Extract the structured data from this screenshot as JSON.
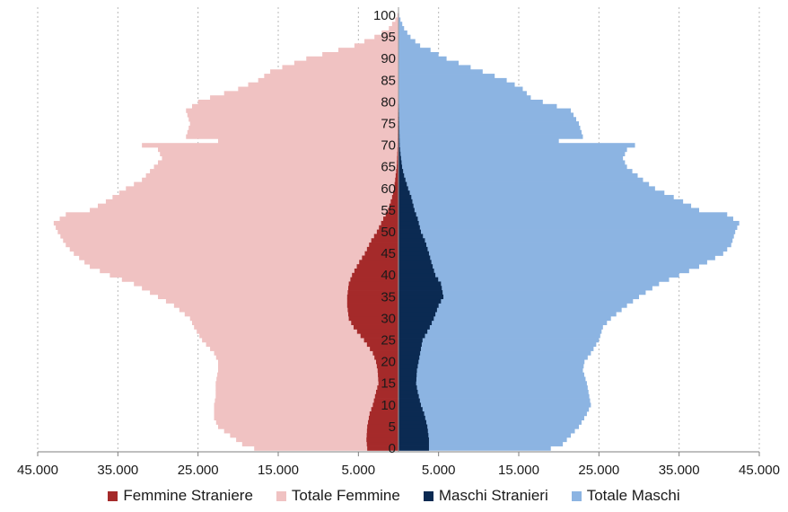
{
  "chart_data": {
    "type": "bar",
    "orientation": "horizontal-pyramid",
    "x_ticks": [
      "45.000",
      "35.000",
      "25.000",
      "15.000",
      "5.000",
      "5.000",
      "15.000",
      "25.000",
      "35.000",
      "45.000"
    ],
    "x_tick_values": [
      -45000,
      -35000,
      -25000,
      -15000,
      -5000,
      5000,
      15000,
      25000,
      35000,
      45000
    ],
    "xlim": [
      -45000,
      45000
    ],
    "age_ticks": [
      "0",
      "5",
      "10",
      "15",
      "20",
      "25",
      "30",
      "35",
      "40",
      "45",
      "50",
      "55",
      "60",
      "65",
      "70",
      "75",
      "80",
      "85",
      "90",
      "95",
      "100"
    ],
    "age_range": [
      0,
      100
    ],
    "grid": "vertical-dashed",
    "legend_position": "bottom",
    "series": [
      {
        "name": "Femmine Straniere",
        "color": "#a52a2a",
        "side": "left",
        "points": [
          [
            0,
            3900
          ],
          [
            2,
            4000
          ],
          [
            5,
            3900
          ],
          [
            8,
            3600
          ],
          [
            10,
            3200
          ],
          [
            13,
            2800
          ],
          [
            15,
            2500
          ],
          [
            18,
            2600
          ],
          [
            20,
            2800
          ],
          [
            22,
            3200
          ],
          [
            25,
            4300
          ],
          [
            28,
            5600
          ],
          [
            30,
            6200
          ],
          [
            33,
            6400
          ],
          [
            35,
            6400
          ],
          [
            38,
            6200
          ],
          [
            40,
            5800
          ],
          [
            43,
            4900
          ],
          [
            45,
            4200
          ],
          [
            48,
            3400
          ],
          [
            50,
            2700
          ],
          [
            53,
            1900
          ],
          [
            55,
            1300
          ],
          [
            58,
            800
          ],
          [
            60,
            550
          ],
          [
            63,
            350
          ],
          [
            65,
            220
          ],
          [
            68,
            150
          ],
          [
            70,
            100
          ],
          [
            75,
            80
          ],
          [
            80,
            60
          ],
          [
            85,
            40
          ],
          [
            90,
            20
          ],
          [
            95,
            10
          ],
          [
            100,
            0
          ]
        ]
      },
      {
        "name": "Totale Femmine",
        "color": "#f0c2c2",
        "side": "left",
        "points": [
          [
            0,
            18000
          ],
          [
            1,
            19500
          ],
          [
            3,
            21000
          ],
          [
            5,
            22500
          ],
          [
            7,
            23000
          ],
          [
            10,
            23000
          ],
          [
            12,
            22800
          ],
          [
            15,
            22800
          ],
          [
            18,
            22500
          ],
          [
            20,
            22500
          ],
          [
            22,
            23000
          ],
          [
            25,
            24500
          ],
          [
            28,
            25500
          ],
          [
            30,
            26000
          ],
          [
            33,
            28000
          ],
          [
            35,
            30000
          ],
          [
            38,
            33000
          ],
          [
            40,
            36000
          ],
          [
            42,
            38500
          ],
          [
            45,
            40500
          ],
          [
            47,
            41500
          ],
          [
            50,
            42500
          ],
          [
            52,
            43000
          ],
          [
            54,
            41500
          ],
          [
            55,
            38500
          ],
          [
            57,
            36500
          ],
          [
            60,
            34000
          ],
          [
            62,
            32000
          ],
          [
            65,
            30500
          ],
          [
            67,
            29500
          ],
          [
            69,
            30000
          ],
          [
            70,
            32000
          ],
          [
            71,
            22500
          ],
          [
            72,
            26500
          ],
          [
            75,
            26000
          ],
          [
            78,
            26500
          ],
          [
            80,
            25000
          ],
          [
            81,
            23500
          ],
          [
            83,
            20000
          ],
          [
            85,
            17500
          ],
          [
            87,
            16000
          ],
          [
            89,
            13000
          ],
          [
            90,
            11500
          ],
          [
            92,
            7500
          ],
          [
            93,
            5500
          ],
          [
            95,
            3000
          ],
          [
            97,
            1200
          ],
          [
            99,
            400
          ],
          [
            100,
            150
          ]
        ]
      },
      {
        "name": "Maschi Stranieri",
        "color": "#0b2a52",
        "side": "right",
        "points": [
          [
            0,
            3800
          ],
          [
            2,
            3800
          ],
          [
            5,
            3600
          ],
          [
            8,
            3200
          ],
          [
            10,
            2800
          ],
          [
            13,
            2400
          ],
          [
            15,
            2200
          ],
          [
            18,
            2300
          ],
          [
            20,
            2500
          ],
          [
            22,
            2700
          ],
          [
            25,
            3000
          ],
          [
            28,
            3900
          ],
          [
            30,
            4400
          ],
          [
            33,
            5000
          ],
          [
            35,
            5600
          ],
          [
            38,
            5300
          ],
          [
            40,
            4600
          ],
          [
            43,
            4100
          ],
          [
            45,
            3800
          ],
          [
            48,
            3300
          ],
          [
            50,
            2800
          ],
          [
            53,
            2400
          ],
          [
            55,
            2000
          ],
          [
            58,
            1600
          ],
          [
            60,
            1200
          ],
          [
            63,
            700
          ],
          [
            65,
            450
          ],
          [
            68,
            250
          ],
          [
            70,
            150
          ],
          [
            75,
            100
          ],
          [
            80,
            60
          ],
          [
            85,
            40
          ],
          [
            90,
            20
          ],
          [
            95,
            10
          ],
          [
            100,
            0
          ]
        ]
      },
      {
        "name": "Totale Maschi",
        "color": "#8cb4e2",
        "side": "right",
        "points": [
          [
            0,
            19000
          ],
          [
            1,
            20500
          ],
          [
            3,
            21500
          ],
          [
            5,
            22500
          ],
          [
            8,
            23500
          ],
          [
            10,
            24000
          ],
          [
            12,
            23800
          ],
          [
            15,
            23500
          ],
          [
            18,
            23000
          ],
          [
            20,
            23200
          ],
          [
            22,
            24000
          ],
          [
            25,
            25000
          ],
          [
            28,
            25500
          ],
          [
            30,
            26500
          ],
          [
            33,
            28500
          ],
          [
            35,
            30000
          ],
          [
            38,
            32500
          ],
          [
            40,
            35000
          ],
          [
            42,
            37500
          ],
          [
            45,
            40500
          ],
          [
            47,
            41500
          ],
          [
            50,
            42000
          ],
          [
            52,
            42500
          ],
          [
            54,
            41000
          ],
          [
            55,
            37500
          ],
          [
            57,
            35500
          ],
          [
            60,
            32000
          ],
          [
            62,
            30500
          ],
          [
            65,
            28500
          ],
          [
            67,
            28000
          ],
          [
            69,
            28500
          ],
          [
            70,
            29500
          ],
          [
            71,
            20000
          ],
          [
            72,
            23000
          ],
          [
            75,
            22500
          ],
          [
            78,
            21500
          ],
          [
            80,
            18000
          ],
          [
            81,
            16500
          ],
          [
            83,
            15500
          ],
          [
            85,
            13500
          ],
          [
            87,
            10500
          ],
          [
            89,
            7500
          ],
          [
            90,
            6000
          ],
          [
            92,
            4000
          ],
          [
            93,
            2700
          ],
          [
            95,
            1500
          ],
          [
            97,
            700
          ],
          [
            99,
            250
          ],
          [
            100,
            80
          ]
        ]
      }
    ]
  },
  "legend": [
    {
      "label": "Femmine Straniere",
      "color": "#a52a2a"
    },
    {
      "label": "Totale Femmine",
      "color": "#f0c2c2"
    },
    {
      "label": "Maschi Stranieri",
      "color": "#0b2a52"
    },
    {
      "label": "Totale Maschi",
      "color": "#8cb4e2"
    }
  ]
}
